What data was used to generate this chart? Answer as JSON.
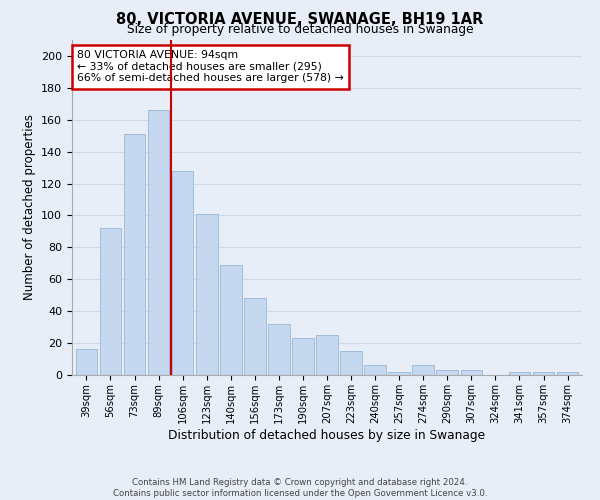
{
  "title": "80, VICTORIA AVENUE, SWANAGE, BH19 1AR",
  "subtitle": "Size of property relative to detached houses in Swanage",
  "xlabel": "Distribution of detached houses by size in Swanage",
  "ylabel": "Number of detached properties",
  "bar_labels": [
    "39sqm",
    "56sqm",
    "73sqm",
    "89sqm",
    "106sqm",
    "123sqm",
    "140sqm",
    "156sqm",
    "173sqm",
    "190sqm",
    "207sqm",
    "223sqm",
    "240sqm",
    "257sqm",
    "274sqm",
    "290sqm",
    "307sqm",
    "324sqm",
    "341sqm",
    "357sqm",
    "374sqm"
  ],
  "bar_values": [
    16,
    92,
    151,
    166,
    128,
    101,
    69,
    48,
    32,
    23,
    25,
    15,
    6,
    2,
    6,
    3,
    3,
    0,
    2,
    2,
    2
  ],
  "bar_color": "#c5d8f0",
  "bar_edge_color": "#a0bcd8",
  "vline_x": 3.5,
  "vline_color": "#cc0000",
  "annotation_box_text": "80 VICTORIA AVENUE: 94sqm\n← 33% of detached houses are smaller (295)\n66% of semi-detached houses are larger (578) →",
  "annotation_box_edge_color": "#cc0000",
  "ylim": [
    0,
    210
  ],
  "yticks": [
    0,
    20,
    40,
    60,
    80,
    100,
    120,
    140,
    160,
    180,
    200
  ],
  "grid_color": "#d0d8e8",
  "bg_color": "#e8eef8",
  "footer_line1": "Contains HM Land Registry data © Crown copyright and database right 2024.",
  "footer_line2": "Contains public sector information licensed under the Open Government Licence v3.0."
}
